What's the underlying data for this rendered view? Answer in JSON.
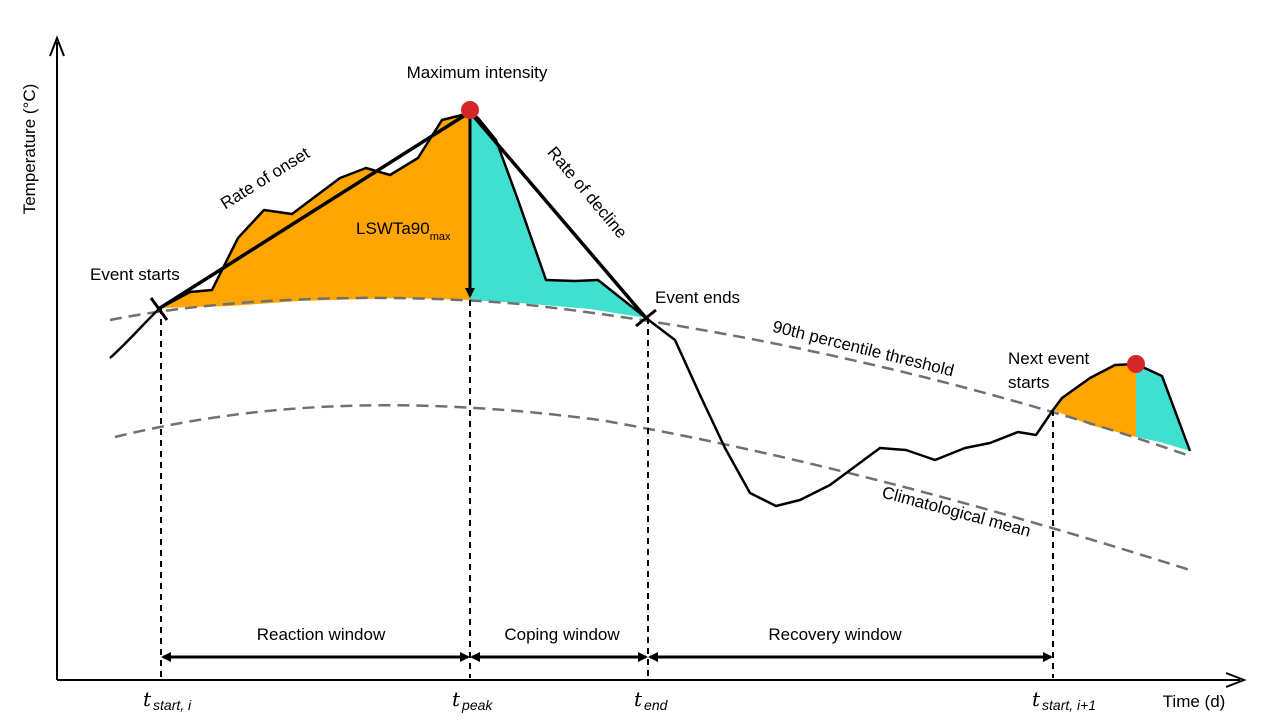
{
  "axes": {
    "y_label": "Temperature (°C)",
    "x_label": "Time (d)"
  },
  "labels": {
    "max_intensity": "Maximum intensity",
    "rate_onset": "Rate of onset",
    "rate_decline": "Rate of decline",
    "lswta_main": "LSWTa90",
    "lswta_sub": "max",
    "event_starts": "Event starts",
    "event_ends": "Event ends",
    "threshold": "90th percentile threshold",
    "clim_mean": "Climatological mean",
    "next_event_line1": "Next event",
    "next_event_line2": "starts"
  },
  "windows": {
    "reaction": "Reaction window",
    "coping": "Coping window",
    "recovery": "Recovery window"
  },
  "ticks": {
    "t_start_i": {
      "main": "t",
      "sub": "start, i"
    },
    "t_peak": {
      "main": "t",
      "sub": "peak"
    },
    "t_end": {
      "main": "t",
      "sub": "end"
    },
    "t_start_i1": {
      "main": "t",
      "sub": "start, i+1"
    }
  },
  "colors": {
    "onset_fill": "#FFA500",
    "decline_fill": "#40E0D0",
    "peak_marker": "#D62728",
    "dashed_curve": "#707070",
    "line": "#000000"
  }
}
